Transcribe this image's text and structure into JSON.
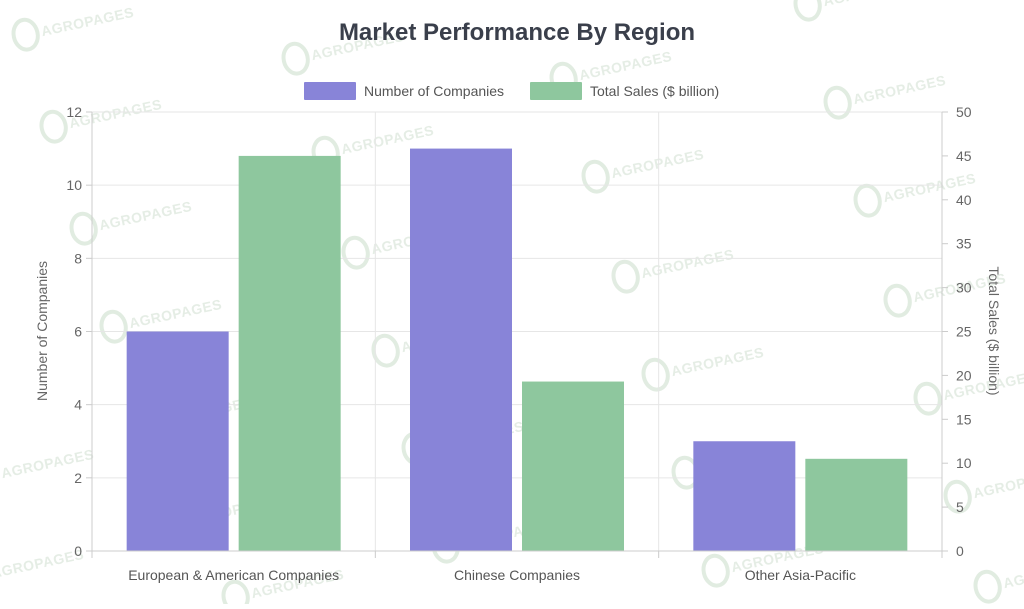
{
  "watermark": {
    "text": "AGROPAGES",
    "color": "#d8e6d8"
  },
  "chart_data": {
    "type": "bar",
    "title": "Market Performance By Region",
    "categories": [
      "European & American Companies",
      "Chinese Companies",
      "Other Asia-Pacific"
    ],
    "series": [
      {
        "name": "Number of Companies",
        "values": [
          6,
          11,
          3
        ],
        "axis": "left",
        "color": "#8884d8"
      },
      {
        "name": "Total Sales ($ billion)",
        "values": [
          45,
          19.3,
          10.5
        ],
        "axis": "right",
        "color": "#8ec79e"
      }
    ],
    "y_left": {
      "label": "Number of Companies",
      "min": 0,
      "max": 12,
      "ticks": [
        0,
        2,
        4,
        6,
        8,
        10,
        12
      ]
    },
    "y_right": {
      "label": "Total Sales ($ billion)",
      "min": 0,
      "max": 50,
      "ticks": [
        0,
        5,
        10,
        15,
        20,
        25,
        30,
        35,
        40,
        45,
        50
      ]
    },
    "legend_position": "top-center",
    "grid": true
  }
}
